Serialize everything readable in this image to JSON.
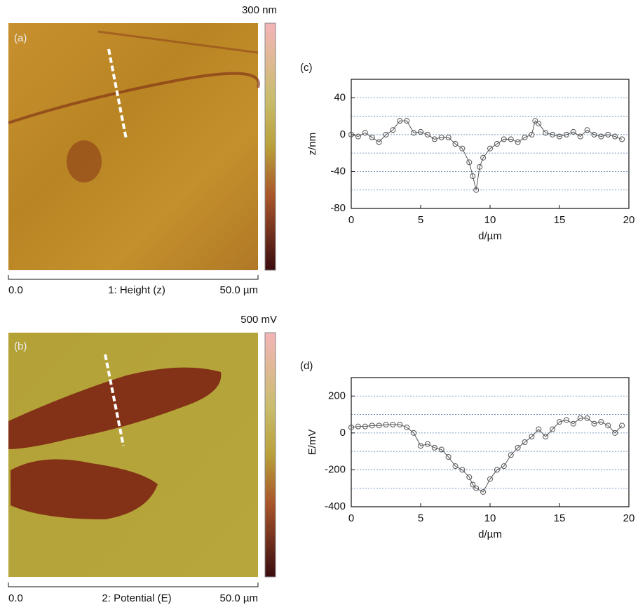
{
  "images": [
    {
      "label": "(a)",
      "scale_max": "300 nm",
      "scale_start": "0.0",
      "channel": "1: Height (z)",
      "scale_end": "50.0 µm"
    },
    {
      "label": "(b)",
      "scale_max": "500 mV",
      "scale_start": "0.0",
      "channel": "2: Potential (E)",
      "scale_end": "50.0 µm"
    }
  ],
  "chart_data": [
    {
      "type": "line",
      "label": "(c)",
      "x_label": "d/µm",
      "y_label": "z/nm",
      "xlim": [
        0,
        20
      ],
      "xticks": [
        0,
        5,
        10,
        15,
        20
      ],
      "ylim": [
        -80,
        60
      ],
      "yticks": [
        -80,
        -40,
        0,
        40
      ],
      "minor_yticks": [
        -60,
        -20,
        20
      ],
      "grid": true,
      "series": [
        {
          "color": "#555555",
          "x": [
            0,
            0.5,
            1,
            1.5,
            2,
            2.5,
            3,
            3.5,
            4,
            4.5,
            5,
            5.5,
            6,
            6.5,
            7,
            7.5,
            8,
            8.5,
            8.75,
            9,
            9.25,
            9.5,
            10,
            10.5,
            11,
            11.5,
            12,
            12.5,
            13,
            13.25,
            13.5,
            14,
            14.5,
            15,
            15.5,
            16,
            16.5,
            17,
            17.5,
            18,
            18.5,
            19,
            19.5
          ],
          "values": [
            0,
            -2,
            2,
            -3,
            -8,
            0,
            5,
            15,
            15,
            2,
            3,
            0,
            -5,
            -3,
            -3,
            -10,
            -15,
            -30,
            -45,
            -60,
            -35,
            -25,
            -15,
            -10,
            -5,
            -5,
            -8,
            -3,
            0,
            15,
            12,
            2,
            0,
            -2,
            0,
            3,
            -2,
            5,
            0,
            -2,
            0,
            -2,
            -5
          ]
        }
      ]
    },
    {
      "type": "line",
      "label": "(d)",
      "x_label": "d/µm",
      "y_label": "E/mV",
      "xlim": [
        0,
        20
      ],
      "xticks": [
        0,
        5,
        10,
        15,
        20
      ],
      "ylim": [
        -400,
        300
      ],
      "yticks": [
        -400,
        -200,
        0,
        200
      ],
      "minor_yticks": [
        -300,
        -100,
        100
      ],
      "grid": true,
      "series": [
        {
          "color": "#555555",
          "x": [
            0,
            0.5,
            1,
            1.5,
            2,
            2.5,
            3,
            3.5,
            4,
            4.5,
            5,
            5.5,
            6,
            6.5,
            7,
            7.5,
            8,
            8.5,
            8.75,
            9,
            9.5,
            10,
            10.5,
            11,
            11.5,
            12,
            12.5,
            13,
            13.5,
            14,
            14.5,
            15,
            15.5,
            16,
            16.5,
            17,
            17.5,
            18,
            18.5,
            19,
            19.5
          ],
          "values": [
            30,
            35,
            35,
            40,
            40,
            45,
            45,
            45,
            30,
            0,
            -70,
            -60,
            -80,
            -90,
            -130,
            -180,
            -200,
            -240,
            -280,
            -300,
            -320,
            -250,
            -200,
            -180,
            -120,
            -80,
            -50,
            -20,
            20,
            -20,
            20,
            60,
            70,
            50,
            80,
            80,
            50,
            60,
            40,
            0,
            40
          ]
        }
      ]
    }
  ]
}
